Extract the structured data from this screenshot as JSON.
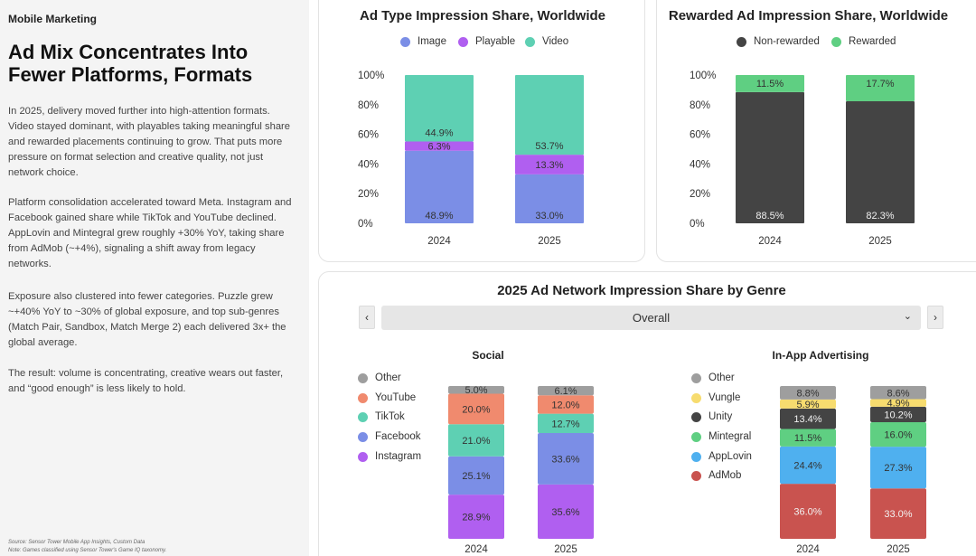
{
  "sidebar": {
    "kicker": "Mobile Marketing",
    "headline": "Ad Mix Concentrates Into Fewer Platforms, Formats",
    "paragraphs": [
      "In 2025, delivery moved further into high-attention formats. Video stayed dominant, with playables taking meaningful share and rewarded placements continuing to grow. That puts more pressure on format selection and creative quality, not just network choice.",
      "Platform consolidation accelerated toward Meta. Instagram and Facebook gained share while TikTok and YouTube declined. AppLovin and Mintegral grew roughly +30% YoY, taking share from AdMob (~+4%), signaling a shift away from legacy networks.",
      "Exposure also clustered into fewer categories. Puzzle grew ~+40% YoY to ~30% of global exposure, and top sub-genres (Match Pair, Sandbox, Match Merge 2) each delivered 3x+ the global average.",
      "The result: volume is concentrating, creative wears out faster, and “good enough” is less likely to hold."
    ],
    "source": "Source: Sensor Tower Mobile App Insights, Custom Data",
    "note": "Note: Games classified using Sensor Tower's Game IQ taxonomy."
  },
  "filter": {
    "title": "2025 Ad Network Impression Share by Genre",
    "selected": "Overall",
    "prev_label": "‹",
    "next_label": "›",
    "chevron": "⌄"
  },
  "chart_data": [
    {
      "id": "ad_type",
      "type": "bar",
      "stacked": true,
      "title": "Ad Type Impression Share, Worldwide",
      "categories": [
        "2024",
        "2025"
      ],
      "yticks": [
        "0%",
        "20%",
        "40%",
        "60%",
        "80%",
        "100%"
      ],
      "ylim": [
        0,
        100
      ],
      "legend_position": "top",
      "series": [
        {
          "name": "Image",
          "color": "#7b8ee6",
          "values": [
            48.9,
            33.0
          ],
          "labels": [
            "48.9%",
            "33.0%"
          ]
        },
        {
          "name": "Playable",
          "color": "#b05ff0",
          "values": [
            6.3,
            13.3
          ],
          "labels": [
            "6.3%",
            "13.3%"
          ]
        },
        {
          "name": "Video",
          "color": "#5ed0b3",
          "values": [
            44.9,
            53.7
          ],
          "labels": [
            "44.9%",
            "53.7%"
          ]
        }
      ]
    },
    {
      "id": "rewarded",
      "type": "bar",
      "stacked": true,
      "title": "Rewarded Ad Impression Share, Worldwide",
      "categories": [
        "2024",
        "2025"
      ],
      "yticks": [
        "0%",
        "20%",
        "40%",
        "60%",
        "80%",
        "100%"
      ],
      "ylim": [
        0,
        100
      ],
      "legend_position": "top",
      "series": [
        {
          "name": "Non-rewarded",
          "color": "#444444",
          "values": [
            88.5,
            82.3
          ],
          "labels": [
            "88.5%",
            "82.3%"
          ]
        },
        {
          "name": "Rewarded",
          "color": "#5fcf82",
          "values": [
            11.5,
            17.7
          ],
          "labels": [
            "11.5%",
            "17.7%"
          ]
        }
      ]
    },
    {
      "id": "social",
      "type": "bar",
      "stacked": true,
      "title": "Social",
      "categories": [
        "2024",
        "2025"
      ],
      "ylim": [
        0,
        100
      ],
      "legend_position": "left",
      "series": [
        {
          "name": "Instagram",
          "color": "#b05ff0",
          "values": [
            28.9,
            35.6
          ],
          "labels": [
            "28.9%",
            "35.6%"
          ]
        },
        {
          "name": "Facebook",
          "color": "#7b8ee6",
          "values": [
            25.1,
            33.6
          ],
          "labels": [
            "25.1%",
            "33.6%"
          ]
        },
        {
          "name": "TikTok",
          "color": "#5ed0b3",
          "values": [
            21.0,
            12.7
          ],
          "labels": [
            "21.0%",
            "12.7%"
          ]
        },
        {
          "name": "YouTube",
          "color": "#f08a6e",
          "values": [
            20.0,
            12.0
          ],
          "labels": [
            "20.0%",
            "12.0%"
          ]
        },
        {
          "name": "Other",
          "color": "#9e9e9e",
          "values": [
            5.0,
            6.1
          ],
          "labels": [
            "5.0%",
            "6.1%"
          ]
        }
      ]
    },
    {
      "id": "inapp",
      "type": "bar",
      "stacked": true,
      "title": "In-App Advertising",
      "categories": [
        "2024",
        "2025"
      ],
      "ylim": [
        0,
        100
      ],
      "legend_position": "left",
      "series": [
        {
          "name": "AdMob",
          "color": "#c9534f",
          "values": [
            36.0,
            33.0
          ],
          "labels": [
            "36.0%",
            "33.0%"
          ]
        },
        {
          "name": "AppLovin",
          "color": "#4fb0ef",
          "values": [
            24.4,
            27.3
          ],
          "labels": [
            "24.4%",
            "27.3%"
          ]
        },
        {
          "name": "Mintegral",
          "color": "#5fcf82",
          "values": [
            11.5,
            16.0
          ],
          "labels": [
            "11.5%",
            "16.0%"
          ]
        },
        {
          "name": "Unity",
          "color": "#444444",
          "values": [
            13.4,
            10.2
          ],
          "labels": [
            "13.4%",
            "10.2%"
          ]
        },
        {
          "name": "Vungle",
          "color": "#f7dc6f",
          "values": [
            5.9,
            4.9
          ],
          "labels": [
            "5.9%",
            "4.9%"
          ]
        },
        {
          "name": "Other",
          "color": "#9e9e9e",
          "values": [
            8.8,
            8.6
          ],
          "labels": [
            "8.8%",
            "8.6%"
          ]
        }
      ]
    }
  ]
}
